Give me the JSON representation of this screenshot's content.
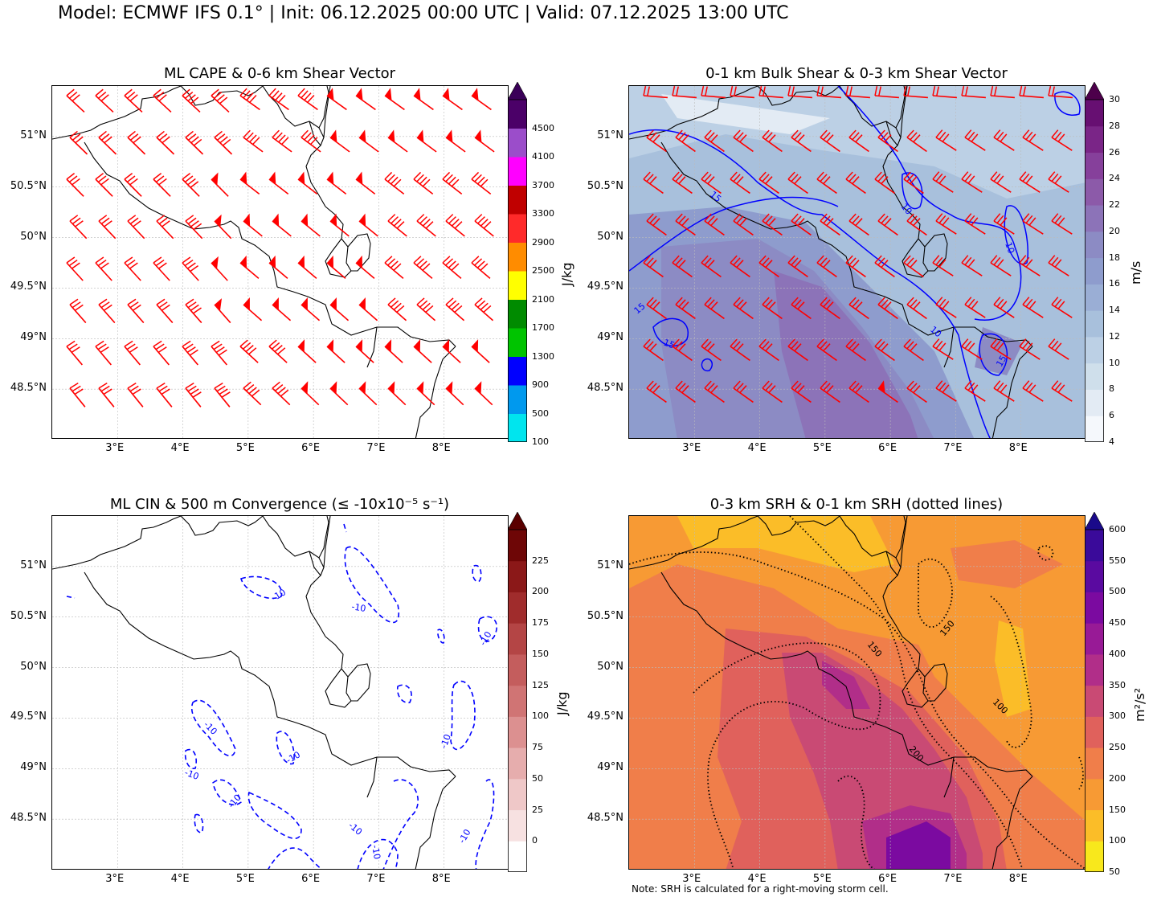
{
  "suptitle": "Model: ECMWF IFS 0.1° | Init: 06.12.2025 00:00 UTC | Valid: 07.12.2025 13:00 UTC",
  "note": "Note: SRH is calculated for a right-moving storm cell.",
  "map_axes": {
    "lon_ticks": [
      "3°E",
      "4°E",
      "5°E",
      "6°E",
      "7°E",
      "8°E"
    ],
    "lat_ticks": [
      "51°N",
      "50.5°N",
      "50°N",
      "49.5°N",
      "49°N",
      "48.5°N"
    ]
  },
  "colors": {
    "barb": "#ff0000",
    "contour_blue": "#0000ff",
    "border": "#000000"
  },
  "chart_data": [
    {
      "type": "heatmap",
      "title": "ML CAPE & 0-6 km Shear Vector",
      "colorbar": {
        "label": "J/kg",
        "ticks": [
          "100",
          "500",
          "900",
          "1300",
          "1700",
          "2100",
          "2500",
          "2900",
          "3300",
          "3700",
          "4100",
          "4500"
        ],
        "colors": [
          "#00e5ee",
          "#0099ee",
          "#0000ff",
          "#00c400",
          "#008b00",
          "#ffff00",
          "#ff8c00",
          "#ff2a2a",
          "#c00000",
          "#ff00ff",
          "#9b4dca",
          "#4b0068"
        ],
        "extend_color": "#3a0058"
      },
      "overlays": [
        "0-6 km shear vector barbs (red)"
      ]
    },
    {
      "type": "heatmap",
      "title": "0-1 km Bulk Shear & 0-3 km Shear Vector",
      "colorbar": {
        "label": "m/s",
        "ticks": [
          "4",
          "6",
          "8",
          "10",
          "12",
          "14",
          "16",
          "18",
          "20",
          "22",
          "24",
          "26",
          "28",
          "30"
        ],
        "colors": [
          "#f5f8fc",
          "#e3ebf4",
          "#cfdfeb",
          "#bcd0e5",
          "#a8c0dc",
          "#9aaed5",
          "#8e9ccd",
          "#8c8bc4",
          "#8c73b8",
          "#8c5aa9",
          "#86409b",
          "#7a2587",
          "#670f72"
        ],
        "extend_color": "#4d004b"
      },
      "contour_labels": [
        "10",
        "15"
      ],
      "overlays": [
        "0-3 km shear vector barbs (red)",
        "0-1 km bulk shear contours (blue)"
      ]
    },
    {
      "type": "heatmap",
      "title": "ML CIN & 500 m Convergence (≤ -10x10⁻⁵ s⁻¹)",
      "colorbar": {
        "label": "J/kg",
        "ticks": [
          "0",
          "25",
          "50",
          "75",
          "100",
          "125",
          "150",
          "175",
          "200",
          "225"
        ],
        "colors": [
          "#ffffff",
          "#f7e1e1",
          "#efc8c8",
          "#e6adad",
          "#dc9090",
          "#d07474",
          "#c45d5d",
          "#b44545",
          "#a02c2c",
          "#8b1818",
          "#6e0606"
        ],
        "extend_color": "#5a0000"
      },
      "contour_labels": [
        "-10"
      ],
      "overlays": [
        "500 m convergence contours (blue dashed)"
      ]
    },
    {
      "type": "heatmap",
      "title": "0-3 km SRH & 0-1 km SRH (dotted lines)",
      "colorbar": {
        "label": "m²/s²",
        "ticks": [
          "50",
          "100",
          "150",
          "200",
          "250",
          "300",
          "350",
          "400",
          "450",
          "500",
          "550",
          "600"
        ],
        "colors": [
          "#f8e81c",
          "#fbbd28",
          "#f79a34",
          "#f07e4a",
          "#e0615c",
          "#c94a74",
          "#b12e89",
          "#981a96",
          "#7b0aa0",
          "#5a0aa0",
          "#3a0a9a"
        ],
        "extend_color": "#1a0a8a"
      },
      "contour_labels": [
        "100",
        "150",
        "200"
      ],
      "overlays": [
        "0-1 km SRH contours (black dotted)"
      ]
    }
  ]
}
